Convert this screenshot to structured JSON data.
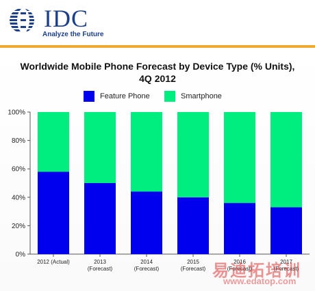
{
  "header": {
    "logo_text": "IDC",
    "tagline": "Analyze the Future"
  },
  "colors": {
    "feature_phone": "#0000ee",
    "smartphone": "#00ee80",
    "brand": "#1c3f8c",
    "rule": "#f0a830"
  },
  "watermark": {
    "text": "易迪拓培训",
    "url": "www.edatop.com"
  },
  "chart_data": {
    "type": "bar",
    "stacked": true,
    "title_line1": "Worldwide Mobile Phone Forecast by Device Type (% Units),",
    "title_line2": "4Q 2012",
    "categories": [
      [
        "2012 (Actual)"
      ],
      [
        "2013",
        "(Forecast)"
      ],
      [
        "2014",
        "(Forecast)"
      ],
      [
        "2015",
        "(Forecast)"
      ],
      [
        "2016",
        "(Forecast)"
      ],
      [
        "2017",
        "(Forecast)"
      ]
    ],
    "series": [
      {
        "name": "Feature Phone",
        "values": [
          58,
          50,
          44,
          40,
          36,
          33
        ]
      },
      {
        "name": "Smartphone",
        "values": [
          42,
          50,
          56,
          60,
          64,
          67
        ]
      }
    ],
    "y_ticks": [
      "0%",
      "20%",
      "40%",
      "60%",
      "80%",
      "100%"
    ],
    "ylim": [
      0,
      100
    ],
    "grid": false,
    "legend_position": "top"
  }
}
